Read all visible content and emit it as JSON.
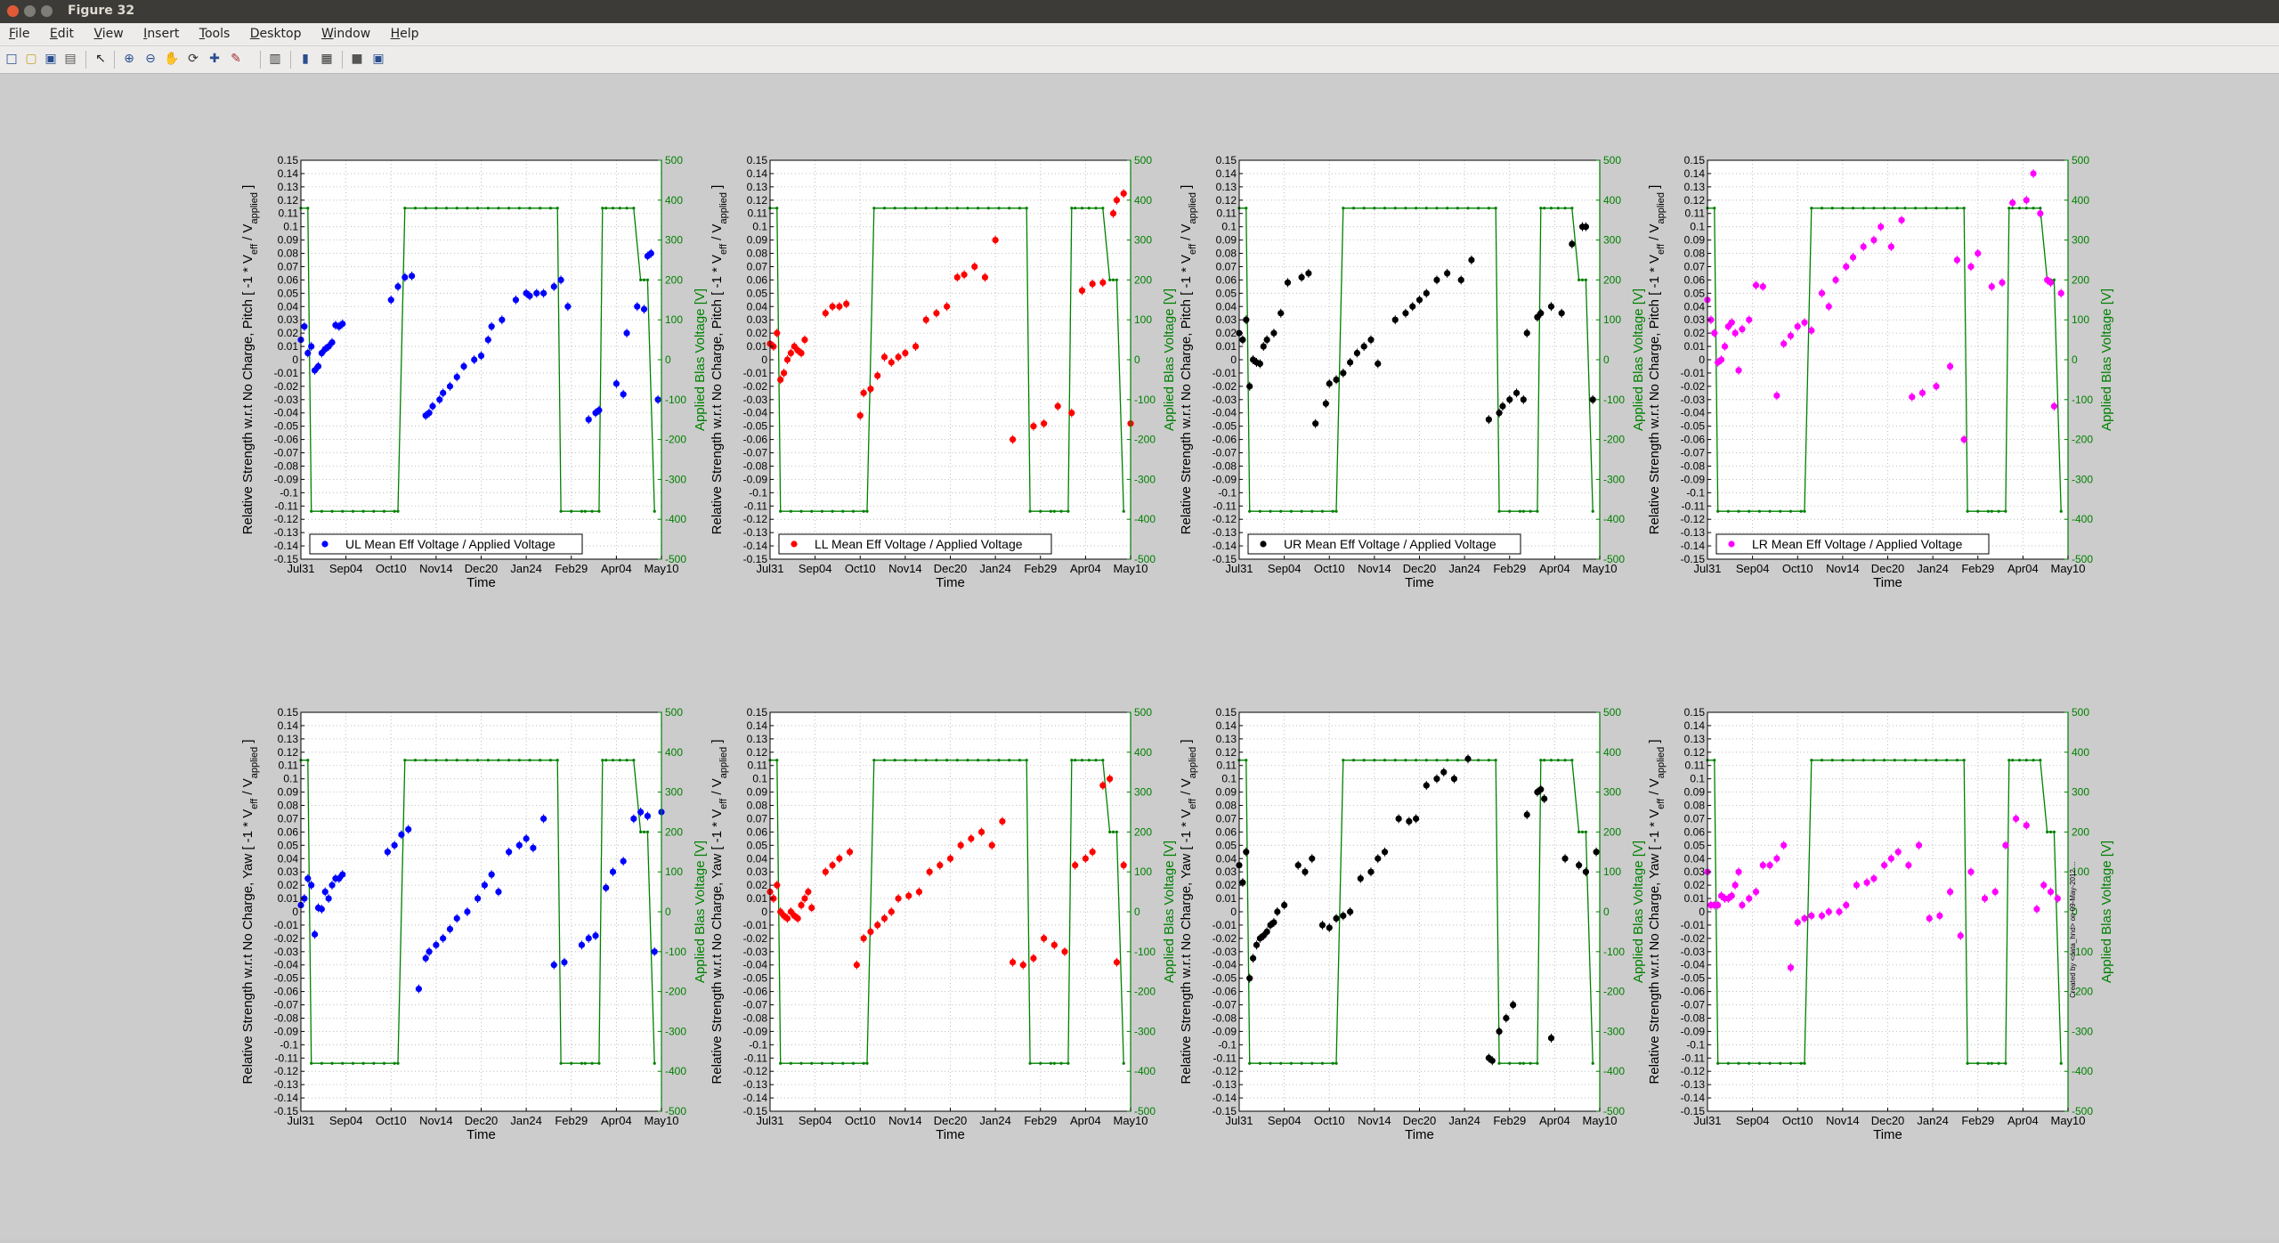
{
  "window": {
    "title": "Figure 32"
  },
  "menu": [
    "File",
    "Edit",
    "View",
    "Insert",
    "Tools",
    "Desktop",
    "Window",
    "Help"
  ],
  "toolbar_icons": [
    "new-figure-icon",
    "open-file-icon",
    "save-icon",
    "print-icon",
    "select-arrow-icon",
    "zoom-in-icon",
    "zoom-out-icon",
    "pan-hand-icon",
    "rotate-3d-icon",
    "data-cursor-icon",
    "brush-icon",
    "link-plot-icon",
    "colorbar-icon",
    "legend-icon",
    "hide-plot-tools-icon",
    "show-plot-tools-icon"
  ],
  "colors": {
    "UL": "#0000ff",
    "LL": "#ff0000",
    "UR": "#000000",
    "LR": "#ff00ff",
    "bias": "#008000"
  },
  "chart_data": [
    {
      "type": "scatter",
      "panel": "UL-Pitch",
      "color": "#0000ff",
      "legend": "UL Mean Eff Voltage / Applied Voltage",
      "ylabel": "Relative Strength w.r.t No Charge, Pitch [ -1 * V_eff / V_applied ]",
      "x": [
        0,
        1,
        2,
        3,
        4,
        5,
        6,
        7,
        8,
        9,
        10,
        11,
        12,
        26,
        28,
        30,
        32,
        36,
        37,
        38,
        40,
        41,
        43,
        45,
        47,
        50,
        52,
        54,
        55,
        58,
        62,
        65,
        66,
        68,
        70,
        73,
        75,
        77,
        83,
        85,
        86,
        91,
        93,
        94,
        97,
        99,
        100,
        101,
        103
      ],
      "y": [
        0.015,
        0.025,
        0.005,
        0.01,
        -0.008,
        -0.005,
        0.005,
        0.008,
        0.01,
        0.013,
        0.026,
        0.025,
        0.027,
        0.045,
        0.055,
        0.062,
        0.063,
        -0.042,
        -0.04,
        -0.035,
        -0.03,
        -0.025,
        -0.02,
        -0.013,
        -0.005,
        0.0,
        0.003,
        0.015,
        0.025,
        0.03,
        0.045,
        0.05,
        0.048,
        0.05,
        0.05,
        0.055,
        0.06,
        0.04,
        -0.045,
        -0.04,
        -0.038,
        -0.018,
        -0.026,
        0.02,
        0.04,
        0.038,
        0.078,
        0.08,
        -0.03
      ]
    },
    {
      "type": "scatter",
      "panel": "LL-Pitch",
      "color": "#ff0000",
      "legend": "LL Mean Eff Voltage / Applied Voltage",
      "ylabel": "Relative Strength w.r.t No Charge, Pitch [ -1 * V_eff / V_applied ]",
      "x": [
        0,
        1,
        2,
        3,
        4,
        5,
        6,
        7,
        8,
        9,
        10,
        16,
        18,
        20,
        22,
        26,
        27,
        29,
        31,
        33,
        35,
        37,
        39,
        42,
        45,
        48,
        51,
        54,
        56,
        59,
        62,
        65,
        70,
        76,
        79,
        83,
        87,
        90,
        93,
        96,
        99,
        100,
        102,
        104
      ],
      "y": [
        0.012,
        0.01,
        0.02,
        -0.015,
        -0.01,
        0.0,
        0.005,
        0.01,
        0.007,
        0.005,
        0.015,
        0.035,
        0.04,
        0.04,
        0.042,
        -0.042,
        -0.025,
        -0.022,
        -0.012,
        0.002,
        -0.002,
        0.002,
        0.005,
        0.01,
        0.03,
        0.035,
        0.04,
        0.062,
        0.064,
        0.07,
        0.062,
        0.09,
        -0.06,
        -0.05,
        -0.048,
        -0.035,
        -0.04,
        0.052,
        0.057,
        0.058,
        0.11,
        0.12,
        0.125,
        -0.048
      ]
    },
    {
      "type": "scatter",
      "panel": "UR-Pitch",
      "color": "#000000",
      "legend": "UR Mean Eff Voltage / Applied Voltage",
      "ylabel": "Relative Strength w.r.t No Charge, Pitch [ -1 * V_eff / V_applied ]",
      "x": [
        0,
        1,
        2,
        3,
        4,
        5,
        6,
        7,
        8,
        10,
        12,
        14,
        18,
        20,
        22,
        25,
        26,
        28,
        30,
        32,
        34,
        36,
        38,
        40,
        45,
        48,
        50,
        52,
        54,
        57,
        60,
        64,
        67,
        72,
        75,
        76,
        78,
        80,
        82,
        83,
        86,
        87,
        90,
        93,
        96,
        99,
        100,
        102
      ],
      "y": [
        0.02,
        0.015,
        0.03,
        -0.02,
        0.0,
        -0.002,
        -0.003,
        0.01,
        0.015,
        0.02,
        0.035,
        0.058,
        0.062,
        0.065,
        -0.048,
        -0.033,
        -0.018,
        -0.015,
        -0.01,
        -0.002,
        0.005,
        0.01,
        0.015,
        -0.003,
        0.03,
        0.035,
        0.04,
        0.045,
        0.05,
        0.06,
        0.065,
        0.06,
        0.075,
        -0.045,
        -0.04,
        -0.035,
        -0.03,
        -0.025,
        -0.03,
        0.02,
        0.032,
        0.035,
        0.04,
        0.035,
        0.087,
        0.1,
        0.1,
        -0.03
      ]
    },
    {
      "type": "scatter",
      "panel": "LR-Pitch",
      "color": "#ff00ff",
      "legend": "LR Mean Eff Voltage / Applied Voltage",
      "ylabel": "Relative Strength w.r.t No Charge, Pitch [ -1 * V_eff / V_applied ]",
      "x": [
        0,
        1,
        2,
        3,
        4,
        5,
        6,
        7,
        8,
        9,
        10,
        12,
        14,
        16,
        20,
        22,
        24,
        26,
        28,
        30,
        33,
        35,
        37,
        40,
        42,
        45,
        48,
        50,
        53,
        56,
        59,
        62,
        66,
        70,
        72,
        74,
        76,
        78,
        82,
        85,
        88,
        92,
        94,
        96,
        98,
        99,
        100,
        102
      ],
      "y": [
        0.045,
        0.03,
        0.02,
        -0.002,
        0.0,
        0.01,
        0.025,
        0.028,
        0.02,
        -0.008,
        0.023,
        0.03,
        0.056,
        0.055,
        -0.027,
        0.012,
        0.018,
        0.025,
        0.028,
        0.022,
        0.05,
        0.04,
        0.06,
        0.07,
        0.077,
        0.085,
        0.09,
        0.1,
        0.085,
        0.105,
        -0.028,
        -0.025,
        -0.02,
        -0.005,
        0.075,
        -0.06,
        0.07,
        0.08,
        0.055,
        0.058,
        0.118,
        0.12,
        0.14,
        0.11,
        0.06,
        0.058,
        -0.035,
        0.05
      ]
    },
    {
      "type": "scatter",
      "panel": "UL-Yaw",
      "color": "#0000ff",
      "legend": "",
      "ylabel": "Relative Strength w.r.t No Charge, Yaw [ -1 * V_eff / V_applied ]",
      "x": [
        0,
        1,
        2,
        3,
        4,
        5,
        6,
        7,
        8,
        9,
        10,
        11,
        12,
        25,
        27,
        29,
        31,
        34,
        36,
        37,
        39,
        41,
        43,
        45,
        48,
        51,
        53,
        55,
        57,
        60,
        63,
        65,
        67,
        70,
        73,
        76,
        81,
        83,
        85,
        88,
        90,
        93,
        96,
        98,
        100,
        102,
        104
      ],
      "y": [
        0.005,
        0.01,
        0.025,
        0.02,
        -0.017,
        0.003,
        0.002,
        0.015,
        0.01,
        0.02,
        0.025,
        0.025,
        0.028,
        0.045,
        0.05,
        0.058,
        0.062,
        -0.058,
        -0.035,
        -0.03,
        -0.025,
        -0.02,
        -0.013,
        -0.005,
        0.0,
        0.01,
        0.02,
        0.028,
        0.015,
        0.045,
        0.05,
        0.055,
        0.048,
        0.07,
        -0.04,
        -0.038,
        -0.025,
        -0.02,
        -0.018,
        0.018,
        0.03,
        0.038,
        0.07,
        0.075,
        0.072,
        -0.03,
        0.075
      ]
    },
    {
      "type": "scatter",
      "panel": "LL-Yaw",
      "color": "#ff0000",
      "legend": "",
      "ylabel": "Relative Strength w.r.t No Charge, Yaw [ -1 * V_eff / V_applied ]",
      "x": [
        0,
        1,
        2,
        3,
        4,
        5,
        6,
        7,
        8,
        9,
        10,
        11,
        12,
        16,
        18,
        20,
        23,
        25,
        27,
        29,
        31,
        33,
        35,
        37,
        40,
        43,
        46,
        49,
        52,
        55,
        58,
        61,
        64,
        67,
        70,
        73,
        76,
        79,
        82,
        85,
        88,
        91,
        93,
        96,
        98,
        100,
        102
      ],
      "y": [
        0.015,
        0.01,
        0.02,
        0.0,
        -0.003,
        -0.005,
        0.0,
        -0.003,
        -0.005,
        0.005,
        0.01,
        0.015,
        0.003,
        0.03,
        0.035,
        0.04,
        0.045,
        -0.04,
        -0.02,
        -0.015,
        -0.01,
        -0.005,
        0.0,
        0.01,
        0.012,
        0.015,
        0.03,
        0.035,
        0.04,
        0.05,
        0.055,
        0.06,
        0.05,
        0.068,
        -0.038,
        -0.04,
        -0.035,
        -0.02,
        -0.025,
        -0.03,
        0.035,
        0.04,
        0.045,
        0.095,
        0.1,
        -0.038,
        0.035
      ]
    },
    {
      "type": "scatter",
      "panel": "UR-Yaw",
      "color": "#000000",
      "legend": "",
      "ylabel": "Relative Strength w.r.t No Charge, Yaw [ -1 * V_eff / V_applied ]",
      "x": [
        0,
        1,
        2,
        3,
        4,
        5,
        6,
        7,
        8,
        9,
        10,
        11,
        13,
        17,
        19,
        21,
        24,
        26,
        28,
        30,
        32,
        35,
        38,
        40,
        42,
        46,
        49,
        51,
        54,
        57,
        59,
        62,
        66,
        72,
        73,
        75,
        77,
        79,
        83,
        86,
        87,
        88,
        90,
        94,
        98,
        100,
        103
      ],
      "y": [
        0.035,
        0.022,
        0.045,
        -0.05,
        -0.035,
        -0.025,
        -0.02,
        -0.018,
        -0.015,
        -0.01,
        -0.008,
        0.0,
        0.005,
        0.035,
        0.03,
        0.04,
        -0.01,
        -0.012,
        -0.005,
        -0.003,
        0.0,
        0.025,
        0.03,
        0.04,
        0.045,
        0.07,
        0.068,
        0.07,
        0.095,
        0.1,
        0.105,
        0.1,
        0.115,
        -0.11,
        -0.112,
        -0.09,
        -0.08,
        -0.07,
        0.073,
        0.09,
        0.092,
        0.085,
        -0.095,
        0.04,
        0.035,
        0.03,
        0.045
      ]
    },
    {
      "type": "scatter",
      "panel": "LR-Yaw",
      "color": "#ff00ff",
      "legend": "",
      "ylabel": "Relative Strength w.r.t No Charge, Yaw [ -1 * V_eff / V_applied ]",
      "x": [
        0,
        1,
        2,
        3,
        4,
        5,
        6,
        7,
        8,
        9,
        10,
        12,
        14,
        16,
        18,
        20,
        22,
        24,
        26,
        28,
        30,
        33,
        35,
        38,
        40,
        43,
        46,
        48,
        51,
        53,
        55,
        58,
        61,
        64,
        67,
        70,
        73,
        76,
        80,
        83,
        86,
        89,
        92,
        95,
        97,
        99,
        101
      ],
      "y": [
        0.03,
        0.005,
        0.005,
        0.005,
        0.012,
        0.01,
        0.01,
        0.012,
        0.02,
        0.03,
        0.005,
        0.01,
        0.015,
        0.035,
        0.035,
        0.04,
        0.05,
        -0.042,
        -0.008,
        -0.005,
        -0.003,
        -0.003,
        0.0,
        0.0,
        0.005,
        0.02,
        0.022,
        0.025,
        0.035,
        0.04,
        0.045,
        0.035,
        0.05,
        -0.005,
        -0.003,
        0.015,
        -0.018,
        0.03,
        0.01,
        0.015,
        0.05,
        0.07,
        0.065,
        0.002,
        0.02,
        0.015,
        0.01
      ]
    }
  ],
  "shared_axes": {
    "xlabel": "Time",
    "x_ticks": [
      "Jul31",
      "Sep04",
      "Oct10",
      "Nov14",
      "Dec20",
      "Jan24",
      "Feb29",
      "Apr04",
      "May10"
    ],
    "ylim": [
      -0.15,
      0.15
    ],
    "y_ticks": [
      "0.15",
      "0.14",
      "0.13",
      "0.12",
      "0.11",
      "0.1",
      "0.09",
      "0.08",
      "0.07",
      "0.06",
      "0.05",
      "0.04",
      "0.03",
      "0.02",
      "0.01",
      "0",
      "-0.01",
      "-0.02",
      "-0.03",
      "-0.04",
      "-0.05",
      "-0.06",
      "-0.07",
      "-0.08",
      "-0.09",
      "-0.1",
      "-0.11",
      "-0.12",
      "-0.13",
      "-0.14",
      "-0.15"
    ],
    "y2label": "Applied Blas Voltage [V]",
    "y2lim": [
      -500,
      500
    ],
    "y2_ticks": [
      "500",
      "400",
      "300",
      "200",
      "100",
      "0",
      "-100",
      "-200",
      "-300",
      "-400",
      "-500"
    ],
    "grid": true,
    "legend_placement": "bottom-left"
  },
  "bias_series": {
    "name": "Applied Blas Voltage",
    "x": [
      0,
      2,
      3,
      6,
      9,
      12,
      15,
      18,
      21,
      24,
      27,
      28,
      30,
      33,
      36,
      39,
      42,
      45,
      48,
      51,
      54,
      57,
      60,
      63,
      66,
      69,
      72,
      74,
      75,
      78,
      81,
      82,
      84,
      86,
      87,
      88,
      90,
      92,
      94,
      96,
      98,
      99,
      100,
      102
    ],
    "y": [
      380,
      380,
      -380,
      -380,
      -380,
      -380,
      -380,
      -380,
      -380,
      -380,
      -380,
      -380,
      380,
      380,
      380,
      380,
      380,
      380,
      380,
      380,
      380,
      380,
      380,
      380,
      380,
      380,
      380,
      380,
      -380,
      -380,
      -380,
      -380,
      -380,
      -380,
      380,
      380,
      380,
      380,
      380,
      380,
      200,
      200,
      200,
      -380
    ]
  },
  "footer_note": "Created by <data_hnd> on 09-May-2012 ..."
}
